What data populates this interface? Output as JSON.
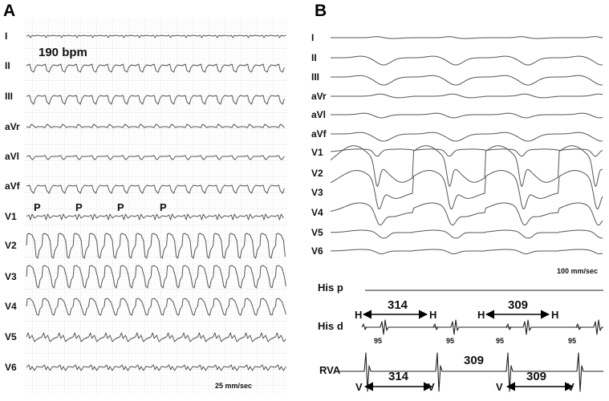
{
  "panel_a": {
    "label": "A",
    "rate": "190 bpm",
    "speed": "25 mm/sec",
    "leads": [
      "I",
      "II",
      "III",
      "aVr",
      "aVl",
      "aVf",
      "V1",
      "V2",
      "V3",
      "V4",
      "V5",
      "V6"
    ],
    "p_label": "P"
  },
  "panel_b": {
    "label": "B",
    "speed": "100 mm/sec",
    "leads": [
      "I",
      "II",
      "III",
      "aVr",
      "aVl",
      "aVf",
      "V1",
      "V2",
      "V3",
      "V4",
      "V5",
      "V6"
    ],
    "his_p": "His p",
    "his_d": "His d",
    "rva": "RVA",
    "h_label": "H",
    "v_label": "V",
    "hh_interval_1": "314",
    "hh_interval_2": "309",
    "hv_interval": "95",
    "rva_label_interval": "309",
    "vv_interval_1": "314",
    "vv_interval_2": "309"
  }
}
